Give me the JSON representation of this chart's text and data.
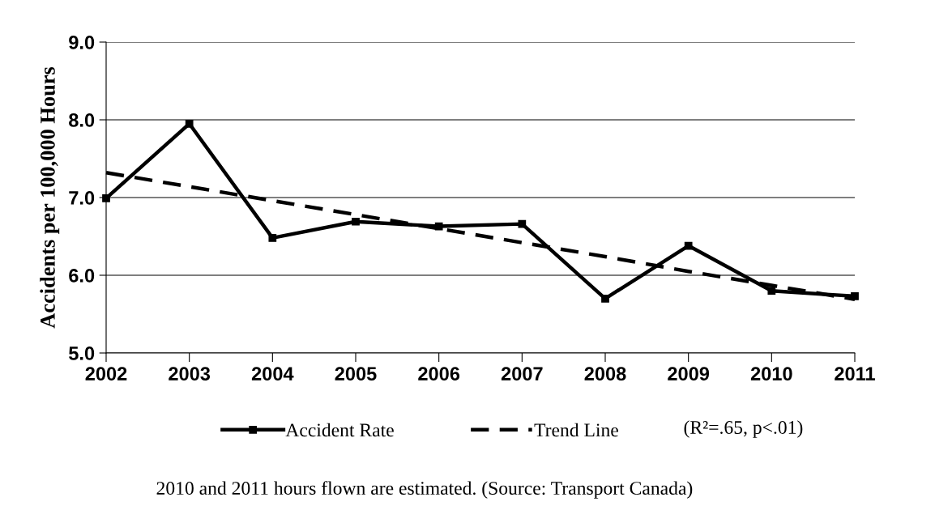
{
  "chart_data": {
    "type": "line",
    "ylabel": "Accidents per 100,000 Hours",
    "categories": [
      "2002",
      "2003",
      "2004",
      "2005",
      "2006",
      "2007",
      "2008",
      "2009",
      "2010",
      "2011"
    ],
    "series": [
      {
        "name": "Accident Rate",
        "color": "#000000",
        "marker": "square",
        "line_style": "solid",
        "values": [
          6.99,
          7.95,
          6.48,
          6.69,
          6.63,
          6.66,
          5.7,
          6.38,
          5.8,
          5.73
        ]
      },
      {
        "name": "Trend Line",
        "type": "line",
        "color": "#000000",
        "marker": "none",
        "line_style": "dashed",
        "values": [
          7.32,
          7.14,
          6.96,
          6.78,
          6.6,
          6.42,
          6.24,
          6.05,
          5.87,
          5.69
        ]
      }
    ],
    "ylim": [
      5.0,
      9.0
    ],
    "yticks": [
      {
        "value": 5,
        "label": "5.0"
      },
      {
        "value": 6,
        "label": "6.0"
      },
      {
        "value": 7,
        "label": "7.0"
      },
      {
        "value": 8,
        "label": "8.0"
      },
      {
        "value": 9,
        "label": "9.0"
      }
    ],
    "grid": "y",
    "legend": "bottom",
    "annotations": [
      "(R²=.65, p<.01)",
      "2010 and 2011 hours flown are estimated. (Source: Transport Canada)"
    ]
  }
}
